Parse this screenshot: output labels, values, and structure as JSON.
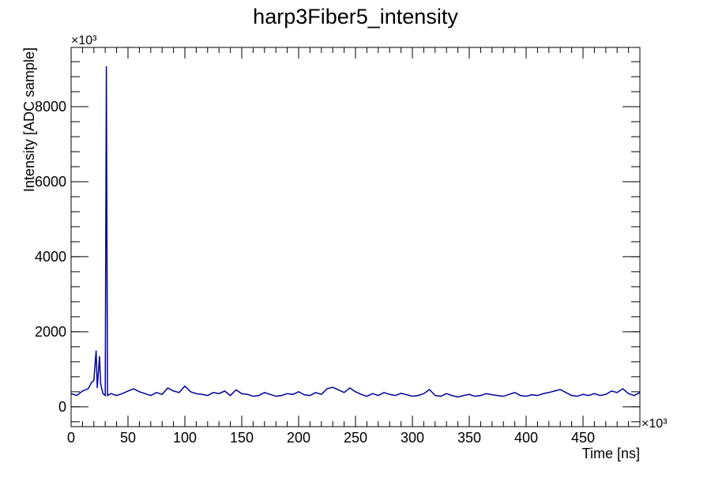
{
  "chart_data": {
    "type": "line",
    "title": "harp3Fiber5_intensity",
    "x_label": "Time [ns]",
    "y_label": "Intensity [ADC sample]",
    "x_multiplier": "×10³",
    "y_multiplier": "×10³",
    "x": [
      0,
      5,
      10,
      15,
      18,
      20,
      22,
      23,
      25,
      26,
      28,
      30,
      31,
      32,
      35,
      40,
      45,
      50,
      55,
      60,
      65,
      70,
      75,
      80,
      85,
      90,
      95,
      100,
      105,
      110,
      115,
      120,
      125,
      130,
      135,
      140,
      145,
      150,
      155,
      160,
      165,
      170,
      175,
      180,
      185,
      190,
      195,
      200,
      205,
      210,
      215,
      220,
      225,
      230,
      235,
      240,
      245,
      250,
      255,
      260,
      265,
      270,
      275,
      280,
      285,
      290,
      295,
      300,
      305,
      310,
      315,
      320,
      325,
      330,
      335,
      340,
      345,
      350,
      355,
      360,
      365,
      370,
      375,
      380,
      385,
      390,
      395,
      400,
      405,
      410,
      415,
      420,
      425,
      430,
      435,
      440,
      445,
      450,
      455,
      460,
      465,
      470,
      475,
      480,
      485,
      490,
      495,
      500
    ],
    "series": [
      {
        "color": "#000099",
        "values": [
          350,
          300,
          420,
          480,
          650,
          700,
          1500,
          500,
          1350,
          600,
          350,
          300,
          9080,
          300,
          350,
          300,
          350,
          420,
          480,
          400,
          350,
          300,
          380,
          330,
          500,
          420,
          380,
          550,
          400,
          350,
          330,
          300,
          380,
          350,
          420,
          300,
          450,
          350,
          330,
          280,
          300,
          380,
          330,
          280,
          300,
          350,
          330,
          400,
          320,
          300,
          380,
          330,
          480,
          520,
          450,
          380,
          500,
          400,
          330,
          280,
          350,
          300,
          380,
          330,
          300,
          360,
          320,
          280,
          300,
          350,
          460,
          300,
          280,
          350,
          300,
          260,
          300,
          330,
          280,
          300,
          350,
          320,
          300,
          280,
          330,
          380,
          300,
          280,
          320,
          300,
          350,
          380,
          420,
          460,
          380,
          300,
          280,
          330,
          300,
          350,
          300,
          330,
          420,
          380,
          480,
          350,
          300,
          380
        ]
      }
    ],
    "xlim": [
      0,
      500
    ],
    "ylim": [
      -530,
      9580
    ],
    "xticks": [
      0,
      50,
      100,
      150,
      200,
      250,
      300,
      350,
      400,
      450
    ],
    "yticks": [
      0,
      2000,
      4000,
      6000,
      8000
    ]
  }
}
